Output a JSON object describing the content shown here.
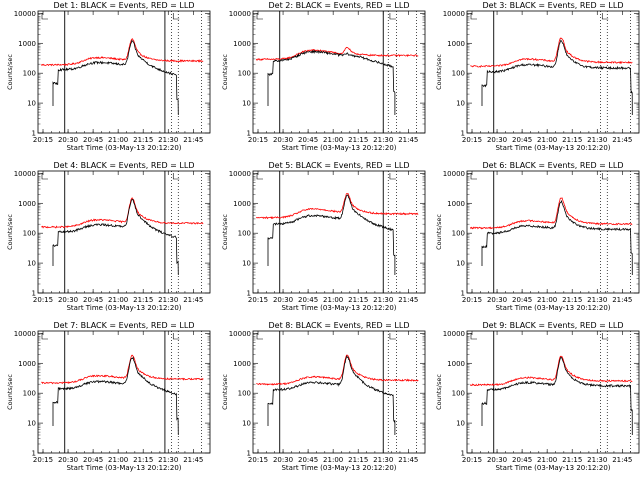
{
  "chart_data": {
    "type": "line",
    "x_tick_labels": [
      "20:15",
      "20:30",
      "20:45",
      "21:00",
      "21:15",
      "21:30",
      "21:45"
    ],
    "x_tick_minutes": [
      15,
      30,
      45,
      60,
      75,
      90,
      105
    ],
    "x_range_minutes": [
      12,
      115
    ],
    "y_tick_labels": [
      "1",
      "10",
      "100",
      "1000",
      "10000"
    ],
    "ylim": [
      1,
      12000
    ],
    "ylog": true,
    "ylabel": "Counts/sec",
    "xlabel": "Start Time (03-May-13 20:12:20)",
    "series_legend": [
      {
        "name": "Events",
        "color": "#000000"
      },
      {
        "name": "LLD",
        "color": "#ff0000"
      }
    ],
    "panels": [
      {
        "title": "Det 1: BLACK = Events, RED = LLD",
        "solid_lines": [
          28,
          88
        ],
        "dotted_lines": [
          92,
          96,
          110
        ],
        "events_peak": 1100,
        "lld_peak": 1300,
        "events_baseline": 130,
        "lld_baseline": 190,
        "bump": 1,
        "events_start": 21,
        "events_end": 96
      },
      {
        "title": "Det 2: BLACK = Events, RED = LLD",
        "solid_lines": [
          28,
          90
        ],
        "dotted_lines": [
          93,
          98,
          110
        ],
        "events_peak": 320,
        "lld_peak": 600,
        "events_baseline": 260,
        "lld_baseline": 290,
        "bump": 1.4,
        "events_start": 21,
        "events_end": 97
      },
      {
        "title": "Det 3: BLACK = Events, RED = LLD",
        "solid_lines": [
          28
        ],
        "dotted_lines": [
          92,
          96,
          110
        ],
        "events_peak": 1200,
        "lld_peak": 1500,
        "events_baseline": 110,
        "lld_baseline": 170,
        "bump": 1,
        "events_start": 21,
        "events_end": 111
      },
      {
        "title": "Det 4: BLACK = Events, RED = LLD",
        "solid_lines": [
          28,
          88
        ],
        "dotted_lines": [
          92,
          96,
          110
        ],
        "events_peak": 1300,
        "lld_peak": 1400,
        "events_baseline": 110,
        "lld_baseline": 160,
        "bump": 1,
        "events_start": 21,
        "events_end": 96
      },
      {
        "title": "Det 5: BLACK = Events, RED = LLD",
        "solid_lines": [
          28,
          90
        ],
        "dotted_lines": [
          93,
          98,
          110
        ],
        "events_peak": 1800,
        "lld_peak": 2000,
        "events_baseline": 200,
        "lld_baseline": 330,
        "bump": 1.3,
        "events_start": 21,
        "events_end": 97
      },
      {
        "title": "Det 6: BLACK = Events, RED = LLD",
        "solid_lines": [
          28
        ],
        "dotted_lines": [
          92,
          96,
          110
        ],
        "events_peak": 1100,
        "lld_peak": 1500,
        "events_baseline": 100,
        "lld_baseline": 150,
        "bump": 1,
        "events_start": 21,
        "events_end": 111
      },
      {
        "title": "Det 7: BLACK = Events, RED = LLD",
        "solid_lines": [
          28,
          88
        ],
        "dotted_lines": [
          92,
          96,
          110
        ],
        "events_peak": 1500,
        "lld_peak": 1700,
        "events_baseline": 140,
        "lld_baseline": 220,
        "bump": 1,
        "events_start": 21,
        "events_end": 96
      },
      {
        "title": "Det 8: BLACK = Events, RED = LLD",
        "solid_lines": [
          28,
          90
        ],
        "dotted_lines": [
          93,
          98,
          110
        ],
        "events_peak": 1600,
        "lld_peak": 1800,
        "events_baseline": 130,
        "lld_baseline": 200,
        "bump": 1,
        "events_start": 21,
        "events_end": 97
      },
      {
        "title": "Det 9: BLACK = Events, RED = LLD",
        "solid_lines": [
          28
        ],
        "dotted_lines": [
          92,
          96,
          110
        ],
        "events_peak": 1500,
        "lld_peak": 1700,
        "events_baseline": 130,
        "lld_baseline": 190,
        "bump": 1,
        "events_start": 21,
        "events_end": 111
      }
    ]
  }
}
